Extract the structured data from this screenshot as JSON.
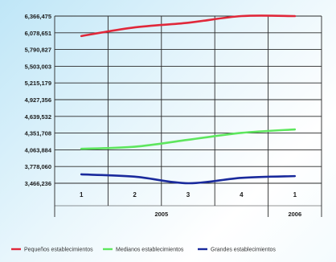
{
  "chart_data": {
    "type": "line",
    "title": "",
    "xlabel": "",
    "ylabel": "",
    "y_ticks": [
      "3,466,236",
      "3,778,060",
      "4,063,884",
      "4,351,708",
      "4,639,532",
      "4,927,356",
      "5,215,179",
      "5,503,003",
      "5,790,827",
      "6,078,651",
      "6,366,475"
    ],
    "ylim": [
      3466236,
      6366475
    ],
    "categories": [
      "1",
      "2",
      "3",
      "4",
      "1"
    ],
    "x_groups": [
      {
        "label": "2005",
        "span": [
          0,
          3
        ]
      },
      {
        "label": "2006",
        "span": [
          4,
          4
        ]
      }
    ],
    "grid": true,
    "legend_position": "bottom",
    "series": [
      {
        "name": "Pequeños establecimientos",
        "color": "#e0283a",
        "values": [
          6020000,
          6170000,
          6250000,
          6366475,
          6366475
        ]
      },
      {
        "name": "Medianos establecimientos",
        "color": "#5ee65e",
        "values": [
          4063884,
          4100000,
          4220000,
          4340000,
          4400000
        ]
      },
      {
        "name": "Grandes establecimientos",
        "color": "#1a2a9c",
        "values": [
          3620000,
          3580000,
          3466236,
          3560000,
          3590000
        ]
      }
    ]
  }
}
